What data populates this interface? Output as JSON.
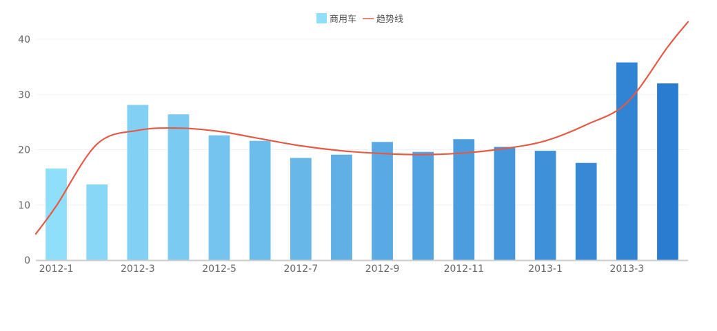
{
  "chart_data": {
    "type": "bar",
    "categories": [
      "2012-1",
      "2012-2",
      "2012-3",
      "2012-4",
      "2012-5",
      "2012-6",
      "2012-7",
      "2012-8",
      "2012-9",
      "2012-10",
      "2012-11",
      "2012-12",
      "2013-1",
      "2013-2",
      "2013-3",
      "2013-4"
    ],
    "x_tick_labels": [
      "2012-1",
      "2012-3",
      "2012-5",
      "2012-7",
      "2012-9",
      "2012-11",
      "2013-1",
      "2013-3"
    ],
    "series": [
      {
        "name": "商用车",
        "type": "bar",
        "values": [
          16.6,
          13.7,
          28.1,
          26.4,
          22.6,
          21.6,
          18.5,
          19.1,
          21.4,
          19.6,
          21.9,
          20.5,
          19.8,
          17.6,
          35.8,
          32.0
        ],
        "color_from": "#8FDEFA",
        "color_to": "#2A7CD0"
      },
      {
        "name": "趋势线",
        "type": "line",
        "values": [
          9.8,
          21.0,
          23.5,
          23.9,
          23.3,
          22.0,
          20.7,
          19.8,
          19.3,
          19.1,
          19.4,
          20.2,
          21.6,
          24.5,
          28.5,
          38.6
        ],
        "color": "#E45A45"
      }
    ],
    "title": "",
    "xlabel": "",
    "ylabel": "",
    "ylim": [
      0,
      40
    ],
    "y_ticks": [
      0,
      10,
      20,
      30,
      40
    ],
    "grid": true,
    "legend_position": "top-center"
  }
}
